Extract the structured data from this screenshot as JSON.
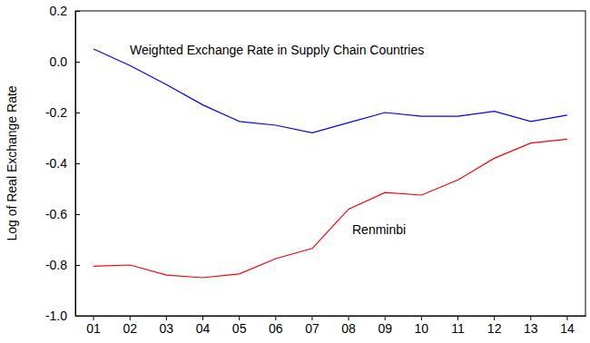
{
  "chart_data": {
    "type": "line",
    "y_label": "Log of Real Exchange Rate",
    "categories": [
      "01",
      "02",
      "03",
      "04",
      "05",
      "06",
      "07",
      "08",
      "09",
      "10",
      "11",
      "12",
      "13",
      "14"
    ],
    "series": [
      {
        "name": "Weighted Exchange Rate in Supply Chain Countries",
        "color": "#0000ff",
        "values": [
          0.05,
          -0.015,
          -0.09,
          -0.17,
          -0.235,
          -0.25,
          -0.28,
          -0.24,
          -0.2,
          -0.215,
          -0.215,
          -0.195,
          -0.235,
          -0.21
        ]
      },
      {
        "name": "Renminbi",
        "color": "#ff0000",
        "values": [
          -0.805,
          -0.8,
          -0.84,
          -0.85,
          -0.835,
          -0.775,
          -0.735,
          -0.58,
          -0.515,
          -0.525,
          -0.465,
          -0.38,
          -0.32,
          -0.305
        ]
      }
    ],
    "ylim": [
      -1.0,
      0.2
    ],
    "yticks": [
      {
        "value": -1.0,
        "label": "-1.0"
      },
      -0.8,
      -0.6,
      -0.4,
      -0.2,
      {
        "value": 0,
        "label": "0.0"
      },
      0.2
    ],
    "grid": false
  }
}
